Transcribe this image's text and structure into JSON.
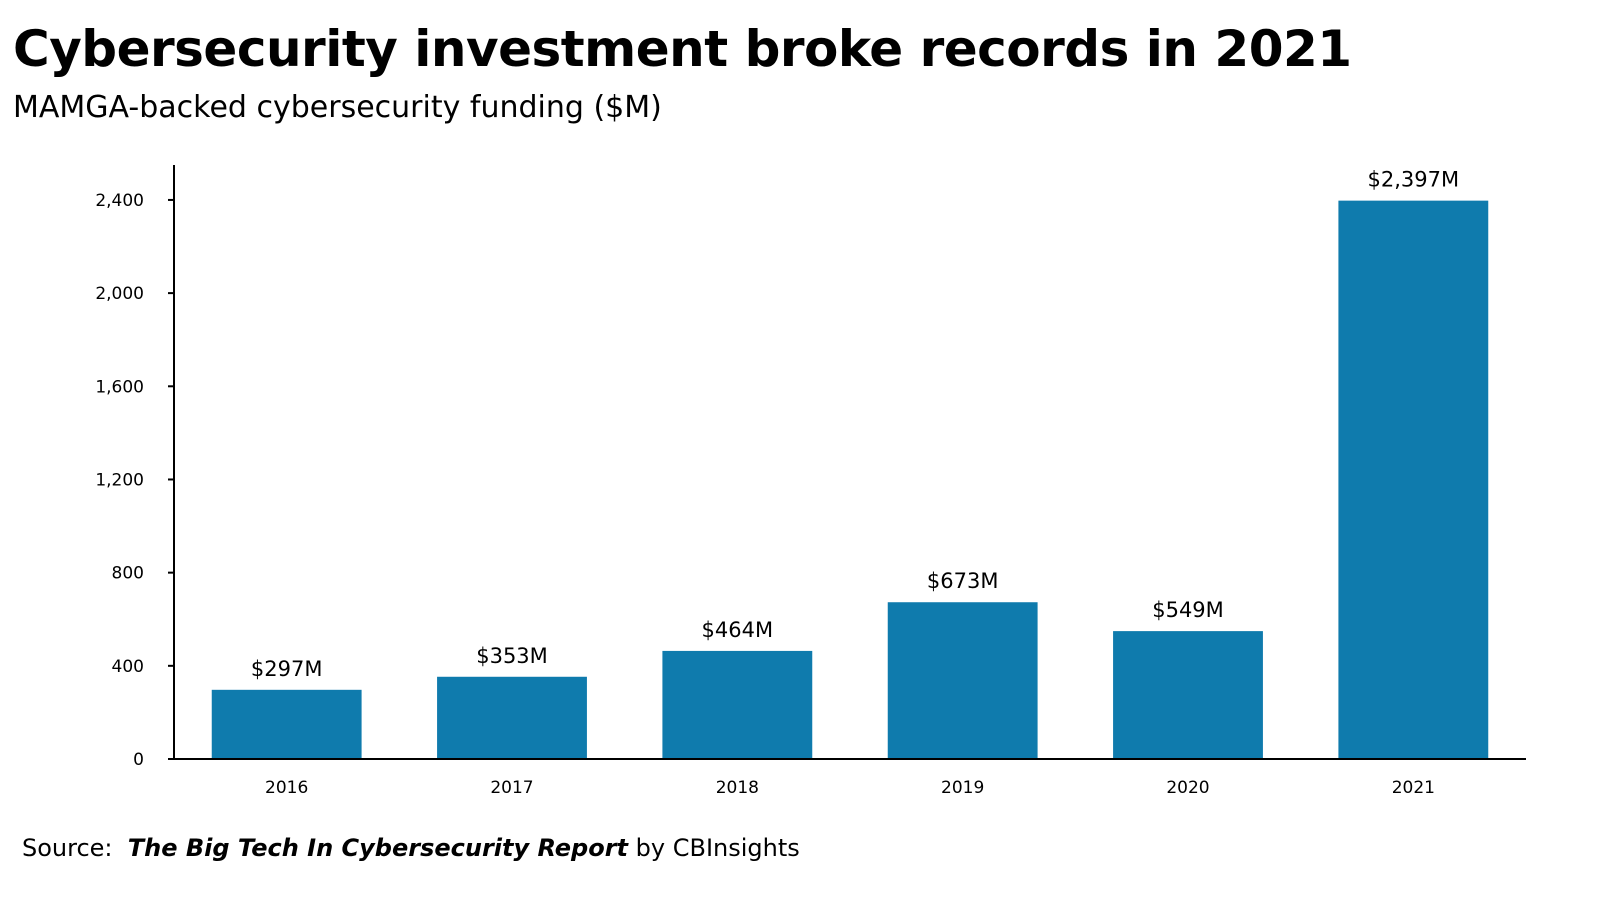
{
  "title": "Cybersecurity investment broke records in 2021",
  "subtitle": "MAMGA-backed cybersecurity funding ($M)",
  "source": {
    "prefix": "Source:",
    "report": "The Big Tech In Cybersecurity Report",
    "suffix": "by CBInsights"
  },
  "colors": {
    "bar": "#0f7bad",
    "axis": "#000000"
  },
  "chart_data": {
    "type": "bar",
    "title": "Cybersecurity investment broke records in 2021",
    "subtitle": "MAMGA-backed cybersecurity funding ($M)",
    "xlabel": "",
    "ylabel": "",
    "categories": [
      "2016",
      "2017",
      "2018",
      "2019",
      "2020",
      "2021"
    ],
    "values": [
      297,
      353,
      464,
      673,
      549,
      2397
    ],
    "data_labels": [
      "$297M",
      "$353M",
      "$464M",
      "$673M",
      "$549M",
      "$2,397M"
    ],
    "ylim": [
      0,
      2550
    ],
    "yticks": [
      0,
      400,
      800,
      1200,
      1600,
      2000,
      2400
    ],
    "ytick_labels": [
      "0",
      "400",
      "800",
      "1,200",
      "1,600",
      "2,000",
      "2,400"
    ],
    "grid": false,
    "legend": "none"
  }
}
